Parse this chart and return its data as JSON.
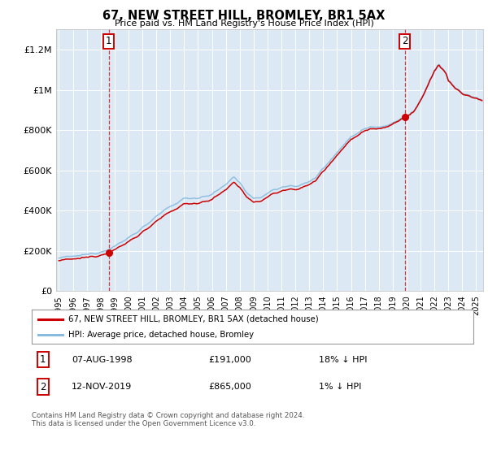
{
  "title": "67, NEW STREET HILL, BROMLEY, BR1 5AX",
  "subtitle": "Price paid vs. HM Land Registry's House Price Index (HPI)",
  "legend_line1": "67, NEW STREET HILL, BROMLEY, BR1 5AX (detached house)",
  "legend_line2": "HPI: Average price, detached house, Bromley",
  "annotation1_date": "07-AUG-1998",
  "annotation1_price": "£191,000",
  "annotation1_hpi": "18% ↓ HPI",
  "annotation2_date": "12-NOV-2019",
  "annotation2_price": "£865,000",
  "annotation2_hpi": "1% ↓ HPI",
  "sale1_x": 1998.58,
  "sale1_y": 191000,
  "sale2_x": 2019.87,
  "sale2_y": 865000,
  "ylim": [
    0,
    1300000
  ],
  "xlim_start": 1994.8,
  "xlim_end": 2025.5,
  "bg_color": "#dce9f5",
  "fig_color": "#ffffff",
  "red_line_color": "#cc0000",
  "blue_line_color": "#88bbdd",
  "footer": "Contains HM Land Registry data © Crown copyright and database right 2024.\nThis data is licensed under the Open Government Licence v3.0.",
  "yticks": [
    0,
    200000,
    400000,
    600000,
    800000,
    1000000,
    1200000
  ],
  "ytick_labels": [
    "£0",
    "£200K",
    "£400K",
    "£600K",
    "£800K",
    "£1M",
    "£1.2M"
  ],
  "hpi_anchors_x": [
    1995.0,
    1996.0,
    1997.0,
    1998.0,
    1999.0,
    2000.0,
    2001.0,
    2002.0,
    2003.0,
    2004.0,
    2005.0,
    2006.0,
    2007.0,
    2007.6,
    2008.0,
    2008.5,
    2009.0,
    2009.5,
    2010.0,
    2010.5,
    2011.0,
    2011.5,
    2012.0,
    2012.5,
    2013.0,
    2013.5,
    2014.0,
    2014.5,
    2015.0,
    2015.5,
    2016.0,
    2016.5,
    2017.0,
    2017.5,
    2018.0,
    2018.5,
    2019.0,
    2019.5,
    2020.0,
    2020.5,
    2021.0,
    2021.5,
    2022.0,
    2022.3,
    2022.8,
    2023.0,
    2023.5,
    2024.0,
    2024.5,
    2025.0,
    2025.4
  ],
  "hpi_anchors_y": [
    165000,
    172000,
    182000,
    196000,
    222000,
    265000,
    315000,
    370000,
    420000,
    460000,
    465000,
    480000,
    530000,
    570000,
    540000,
    490000,
    455000,
    468000,
    488000,
    505000,
    515000,
    522000,
    525000,
    530000,
    542000,
    568000,
    610000,
    652000,
    690000,
    728000,
    768000,
    788000,
    808000,
    818000,
    818000,
    822000,
    838000,
    852000,
    868000,
    895000,
    948000,
    1018000,
    1095000,
    1130000,
    1090000,
    1050000,
    1010000,
    985000,
    970000,
    960000,
    950000
  ]
}
